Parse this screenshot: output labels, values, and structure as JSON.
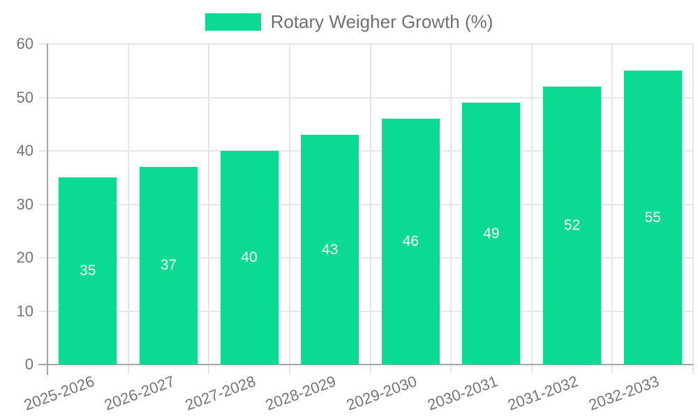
{
  "legend": {
    "label": "Rotary Weigher Growth (%)"
  },
  "chart_data": {
    "type": "bar",
    "title": "Rotary Weigher Growth (%)",
    "categories": [
      "2025-2026",
      "2026-2027",
      "2027-2028",
      "2028-2029",
      "2029-2030",
      "2030-2031",
      "2031-2032",
      "2032-2033"
    ],
    "values": [
      35,
      37,
      40,
      43,
      46,
      49,
      52,
      55
    ],
    "xlabel": "",
    "ylabel": "",
    "ylim": [
      0,
      60
    ],
    "yticks": [
      0,
      10,
      20,
      30,
      40,
      50,
      60
    ],
    "grid": true,
    "legend_position": "top-center",
    "value_labels": "inside-center",
    "colors": {
      "bar": "#0bdb92",
      "value_label": "#ffffff",
      "grid": "#e6e6e6",
      "spine": "#a6a6a6",
      "tick_label": "#757575",
      "legend_text": "#6f6f6f",
      "background": "#ffffff"
    }
  }
}
